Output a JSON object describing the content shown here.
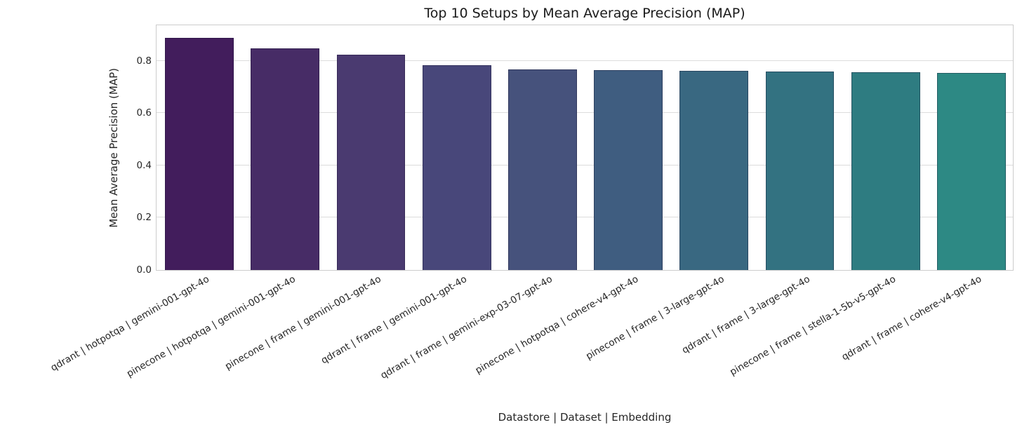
{
  "figure": {
    "title": "Top 10 Setups by Mean Average Precision (MAP)",
    "xlabel": "Datastore | Dataset | Embedding",
    "ylabel": "Mean Average Precision (MAP)"
  },
  "chart_data": {
    "type": "bar",
    "title": "Top 10 Setups by Mean Average Precision (MAP)",
    "xlabel": "Datastore | Dataset | Embedding",
    "ylabel": "Mean Average Precision (MAP)",
    "categories": [
      "qdrant | hotpotqa | gemini-001-gpt-4o",
      "pinecone | hotpotqa | gemini-001-gpt-4o",
      "pinecone | frame | gemini-001-gpt-4o",
      "qdrant | frame | gemini-001-gpt-4o",
      "qdrant | frame | gemini-exp-03-07-gpt-4o",
      "pinecone | hotpotqa | cohere-v4-gpt-4o",
      "pinecone | frame | 3-large-gpt-4o",
      "qdrant | frame | 3-large-gpt-4o",
      "pinecone | frame | stella-1-5b-v5-gpt-4o",
      "qdrant | frame | cohere-v4-gpt-4o"
    ],
    "values": [
      0.888,
      0.848,
      0.824,
      0.782,
      0.768,
      0.765,
      0.761,
      0.76,
      0.756,
      0.755
    ],
    "bar_colors": [
      "#421d5c",
      "#472c66",
      "#4a3a70",
      "#48477a",
      "#46527c",
      "#3f5d80",
      "#396881",
      "#337281",
      "#2e7c81",
      "#2d8984"
    ],
    "ylim": [
      0.0,
      0.9415
    ],
    "yticks": [
      0.0,
      0.2,
      0.4,
      0.6,
      0.8
    ],
    "xtick_rotation_deg": 30,
    "grid": "horizontal",
    "legend_position": "none"
  },
  "colors": {
    "background": "#ffffff",
    "gridline": "#dcdcdc",
    "spine": "#cccccc",
    "text": "#262626"
  }
}
